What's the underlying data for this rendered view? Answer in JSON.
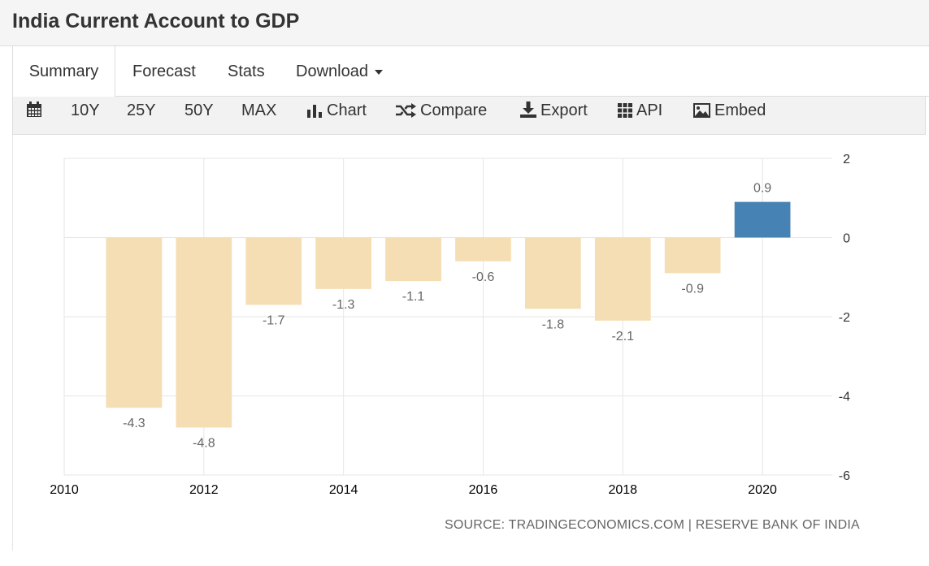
{
  "page": {
    "title": "India Current Account to GDP"
  },
  "tabs": [
    {
      "label": "Summary",
      "active": true
    },
    {
      "label": "Forecast",
      "active": false
    },
    {
      "label": "Stats",
      "active": false
    },
    {
      "label": "Download",
      "active": false,
      "has_dropdown": true
    }
  ],
  "toolbar": {
    "calendar_icon": "calendar-icon",
    "ranges": [
      "10Y",
      "25Y",
      "50Y",
      "MAX"
    ],
    "chart_label": "Chart",
    "compare_label": "Compare",
    "export_label": "Export",
    "api_label": "API",
    "embed_label": "Embed"
  },
  "colors": {
    "negative_bar": "#f5deb3",
    "positive_bar": "#4682b4",
    "grid": "#e6e6e6",
    "text": "#333333",
    "label": "#666666"
  },
  "chart_data": {
    "type": "bar",
    "title": "India Current Account to GDP",
    "categories": [
      "2011",
      "2012",
      "2013",
      "2014",
      "2015",
      "2016",
      "2017",
      "2018",
      "2019",
      "2020"
    ],
    "values": [
      -4.3,
      -4.8,
      -1.7,
      -1.3,
      -1.1,
      -0.6,
      -1.8,
      -2.1,
      -0.9,
      0.9
    ],
    "data_labels": [
      "-4.3",
      "-4.8",
      "-1.7",
      "-1.3",
      "-1.1",
      "-0.6",
      "-1.8",
      "-2.1",
      "-0.9",
      "0.9"
    ],
    "x_ticks": [
      "2010",
      "2012",
      "2014",
      "2016",
      "2018",
      "2020"
    ],
    "x_range": [
      2010,
      2021
    ],
    "y_ticks": [
      "2",
      "0",
      "-2",
      "-4",
      "-6"
    ],
    "ylim": [
      -6,
      2
    ],
    "y_axis_side": "right",
    "grid": true,
    "xlabel": "",
    "ylabel": "",
    "source": "SOURCE: TRADINGECONOMICS.COM | RESERVE BANK OF INDIA"
  }
}
